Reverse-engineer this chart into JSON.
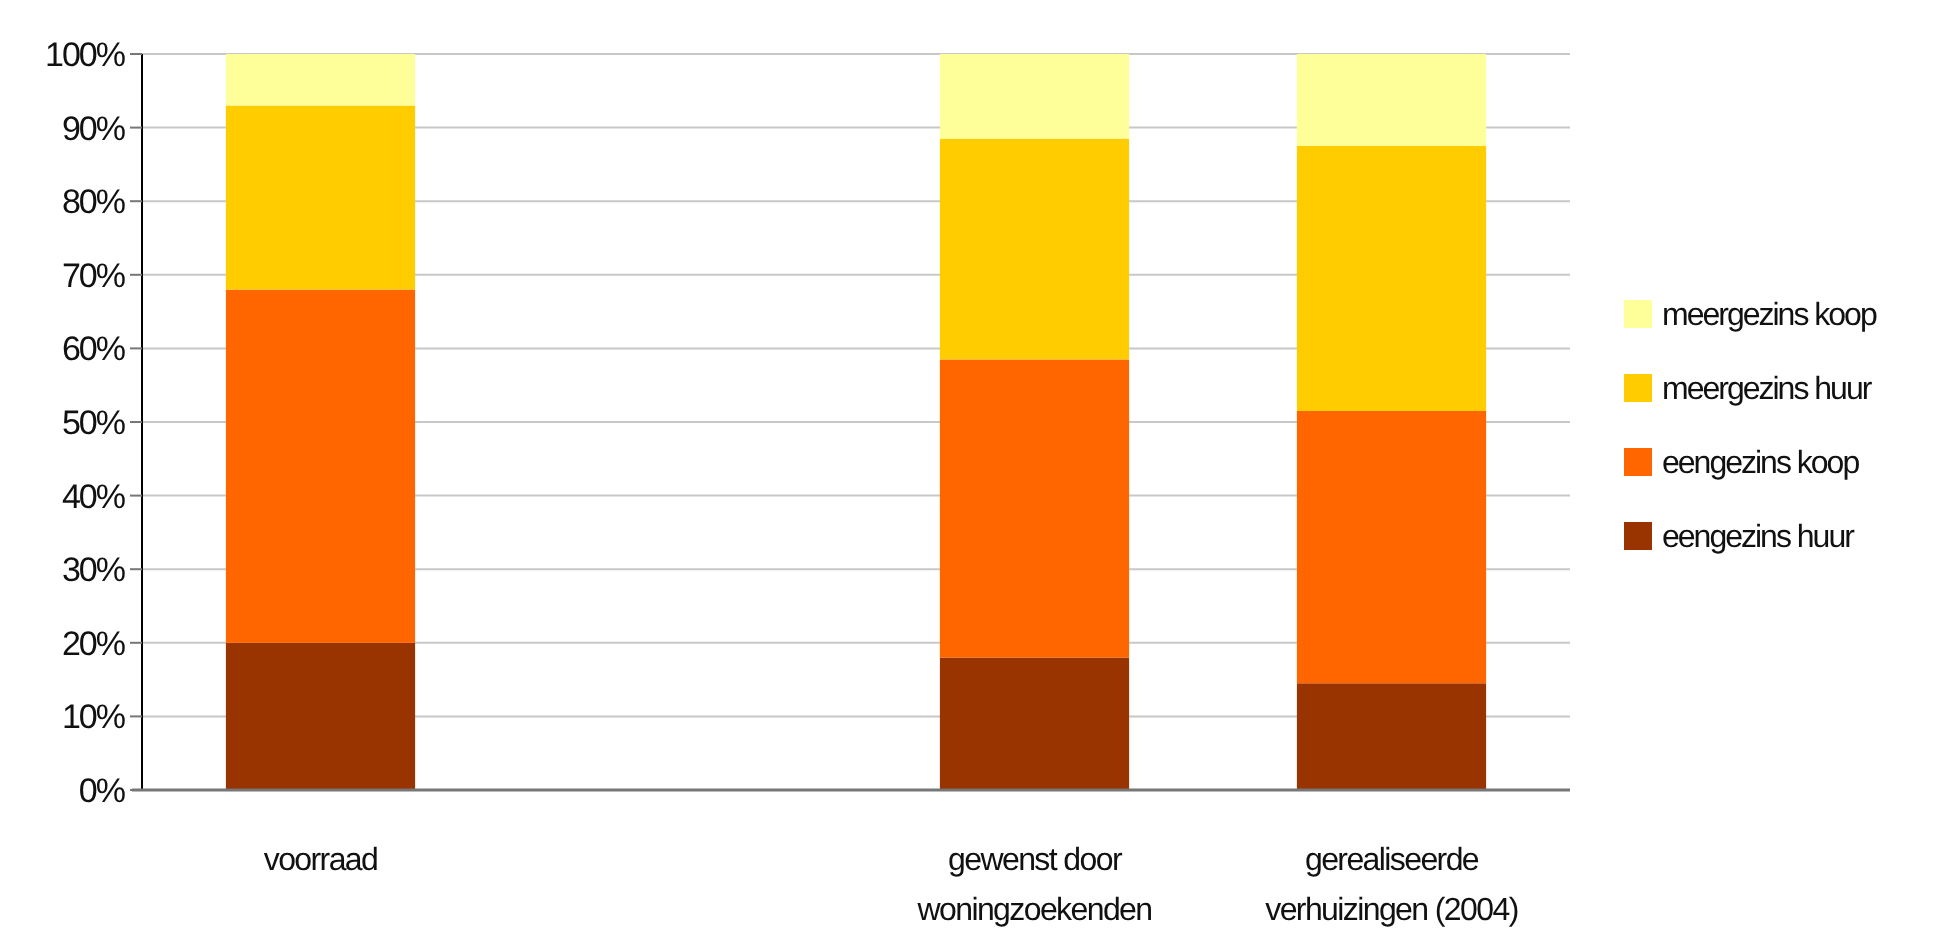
{
  "chart_data": {
    "type": "bar",
    "stacked": true,
    "categories": [
      "voorraad",
      null,
      "gewenst door woningzoekenden",
      "gerealiseerde verhuizingen (2004)"
    ],
    "series": [
      {
        "name": "eengezins huur",
        "color": "#993300",
        "values": [
          20,
          null,
          18,
          14.5
        ]
      },
      {
        "name": "eengezins koop",
        "color": "#ff6600",
        "values": [
          48,
          null,
          40.5,
          37
        ]
      },
      {
        "name": "meergezins huur",
        "color": "#ffcc00",
        "values": [
          25,
          null,
          30,
          36
        ]
      },
      {
        "name": "meergezins koop",
        "color": "#ffff99",
        "values": [
          7,
          null,
          11.5,
          12.5
        ]
      }
    ],
    "ylim": [
      0,
      100
    ],
    "yticks": [
      {
        "value": 0,
        "label": "0%"
      },
      {
        "value": 10,
        "label": "10%"
      },
      {
        "value": 20,
        "label": "20%"
      },
      {
        "value": 30,
        "label": "30%"
      },
      {
        "value": 40,
        "label": "40%"
      },
      {
        "value": 50,
        "label": "50%"
      },
      {
        "value": 60,
        "label": "60%"
      },
      {
        "value": 70,
        "label": "70%"
      },
      {
        "value": 80,
        "label": "80%"
      },
      {
        "value": 90,
        "label": "90%"
      },
      {
        "value": 100,
        "label": "100%"
      }
    ],
    "grid": "y",
    "legend": "right"
  }
}
